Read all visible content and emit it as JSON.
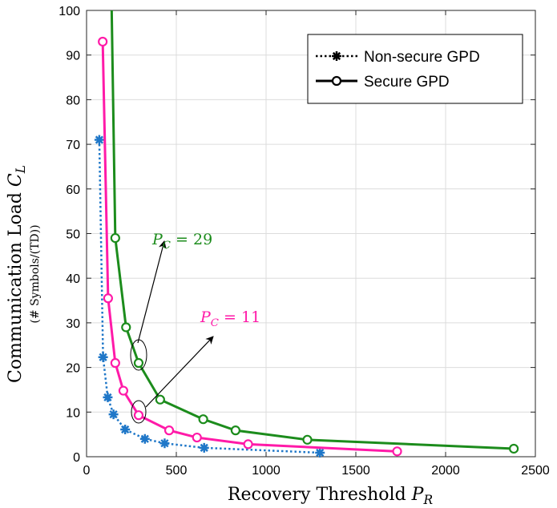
{
  "chart_data": {
    "type": "line",
    "xlabel": "Recovery Threshold",
    "xlabel_symbol": "P",
    "xlabel_sub": "R",
    "ylabel": "Communication Load",
    "ylabel_symbol": "C",
    "ylabel_sub": "L",
    "ylabel_secondary": "(# Symbols/(TD))",
    "xlim": [
      0,
      2500
    ],
    "ylim": [
      0,
      100
    ],
    "xticks": [
      0,
      500,
      1000,
      1500,
      2000,
      2500
    ],
    "yticks": [
      0,
      10,
      20,
      30,
      40,
      50,
      60,
      70,
      80,
      90,
      100
    ],
    "grid": true,
    "legend_position": "top-right",
    "legend": [
      {
        "label": "Non-secure GPD",
        "style": "dotted",
        "marker": "star"
      },
      {
        "label": "Secure GPD",
        "style": "solid",
        "marker": "circle"
      }
    ],
    "series": [
      {
        "group": "Non-secure GPD",
        "color": "#1f77c8",
        "style": "dotted",
        "marker": "star",
        "x": [
          71,
          92,
          118,
          150,
          215,
          325,
          435,
          655,
          1300
        ],
        "y": [
          71,
          22.3,
          13.3,
          9.5,
          6.1,
          4.0,
          3.0,
          2.0,
          0.9
        ]
      },
      {
        "group": "Secure GPD",
        "color": "#ff1aa8",
        "style": "solid",
        "marker": "circle",
        "x": [
          90,
          120,
          160,
          205,
          290,
          460,
          615,
          900,
          1730
        ],
        "y": [
          93,
          35.5,
          21,
          14.8,
          9.3,
          5.9,
          4.3,
          2.8,
          1.2
        ]
      },
      {
        "group": "Secure GPD",
        "color": "#1c8c1c",
        "style": "solid",
        "marker": "circle",
        "x": [
          160,
          220,
          290,
          410,
          650,
          830,
          1230,
          2380
        ],
        "y": [
          49,
          29,
          21,
          12.8,
          8.4,
          5.9,
          3.8,
          1.8
        ],
        "curve_start": {
          "x": 140,
          "y": 100
        }
      }
    ],
    "annotations": [
      {
        "text": "P_C = 29",
        "symbol": "P",
        "sub": "C",
        "rest": " = 29",
        "color": "#1c8c1c",
        "at": {
          "x": 365,
          "y": 47
        }
      },
      {
        "text": "P_C = 11",
        "symbol": "P",
        "sub": "C",
        "rest": " = 11",
        "color": "#ff1aa8",
        "at": {
          "x": 660,
          "y": 29
        }
      }
    ]
  }
}
